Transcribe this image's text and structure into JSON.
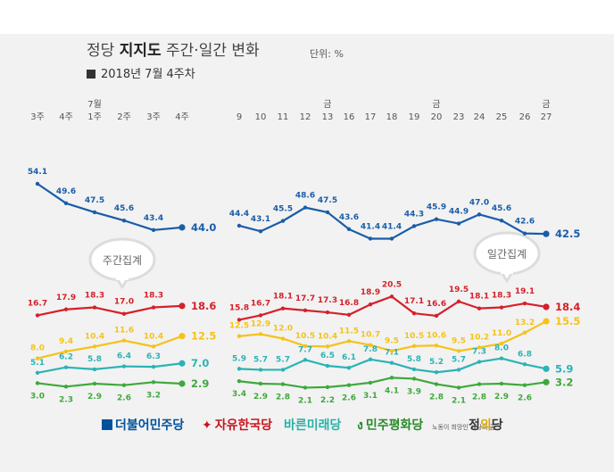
{
  "title": {
    "prefix": "정당 ",
    "bold": "지지도",
    "suffix": " 주간·일간 변화"
  },
  "unit": "단위: %",
  "subtitle": "2018년 7월 4주차",
  "bubbles": {
    "weekly": "주간집계",
    "daily": "일간집계"
  },
  "colors": {
    "더불어민주당": "#1a5da8",
    "자유한국당": "#d6202a",
    "바른미래당": "#2bb3b6",
    "민주평화당": "#3fa83c",
    "정의당": "#f5c21b"
  },
  "chart_data": {
    "type": "line",
    "weekly": {
      "x": [
        "3주",
        "4주",
        "1주",
        "2주",
        "3주",
        "4주"
      ],
      "month_marks": [
        {
          "at": 2,
          "label": "7월"
        }
      ],
      "series": [
        {
          "name": "더불어민주당",
          "values": [
            54.1,
            49.6,
            47.5,
            45.6,
            43.4,
            44.0
          ]
        },
        {
          "name": "자유한국당",
          "values": [
            16.7,
            17.9,
            18.3,
            17.0,
            18.3,
            18.6
          ]
        },
        {
          "name": "정의당",
          "values": [
            8.0,
            9.4,
            10.4,
            11.6,
            10.4,
            12.5
          ]
        },
        {
          "name": "바른미래당",
          "values": [
            5.1,
            6.2,
            5.8,
            6.4,
            6.3,
            7.0
          ]
        },
        {
          "name": "민주평화당",
          "values": [
            3.0,
            2.3,
            2.9,
            2.6,
            3.2,
            2.9
          ]
        }
      ]
    },
    "daily": {
      "x": [
        "9",
        "10",
        "11",
        "12",
        "13",
        "16",
        "17",
        "18",
        "19",
        "20",
        "23",
        "24",
        "25",
        "26",
        "27"
      ],
      "day_marks": [
        {
          "at": 4,
          "label": "금"
        },
        {
          "at": 9,
          "label": "금"
        },
        {
          "at": 14,
          "label": "금"
        }
      ],
      "series": [
        {
          "name": "더불어민주당",
          "values": [
            44.4,
            43.1,
            45.5,
            48.6,
            47.5,
            43.6,
            41.4,
            41.4,
            44.3,
            45.9,
            44.9,
            47.0,
            45.6,
            42.6,
            42.5
          ]
        },
        {
          "name": "자유한국당",
          "values": [
            15.8,
            16.7,
            18.1,
            17.7,
            17.3,
            16.8,
            18.9,
            20.5,
            17.1,
            16.6,
            19.5,
            18.1,
            18.3,
            19.1,
            18.4
          ]
        },
        {
          "name": "정의당",
          "values": [
            12.5,
            12.9,
            12.0,
            10.5,
            10.4,
            11.5,
            10.7,
            9.5,
            10.5,
            10.6,
            9.5,
            10.2,
            11.0,
            13.2,
            15.5
          ]
        },
        {
          "name": "바른미래당",
          "values": [
            5.9,
            5.7,
            5.7,
            7.7,
            6.5,
            6.1,
            7.8,
            7.1,
            5.8,
            5.2,
            5.7,
            7.3,
            8.0,
            6.8,
            5.9
          ]
        },
        {
          "name": "민주평화당",
          "values": [
            3.4,
            2.9,
            2.8,
            2.1,
            2.2,
            2.6,
            3.1,
            4.1,
            3.9,
            2.8,
            2.1,
            2.8,
            2.9,
            2.6,
            3.2
          ]
        }
      ]
    }
  },
  "logos": {
    "dem": "더불어민주당",
    "lkp": "자유한국당",
    "bmp": "바른미래당",
    "dpp": "민주평화당",
    "jus_small": "노동이 희망인 세상의 꿈",
    "jus_main_a": "정",
    "jus_main_b": "의",
    "jus_main_c": "당"
  }
}
